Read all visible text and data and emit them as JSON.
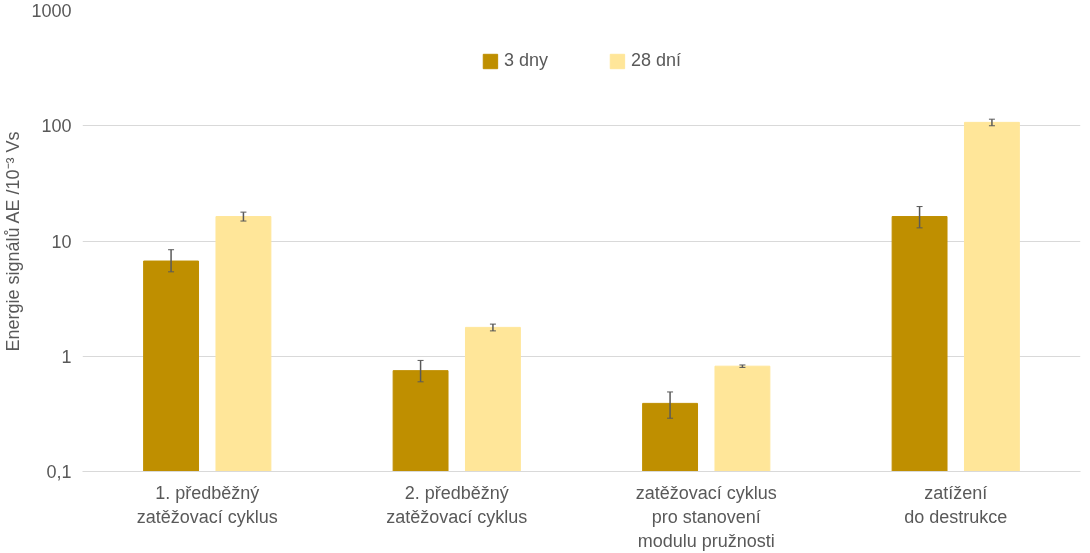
{
  "chart_data": {
    "type": "bar",
    "ylabel": "Energie signálů AE /10⁻³ Vs",
    "categories": [
      "1. předběžný\nzatěžovací cyklus",
      "2. předběžný\nzatěžovací cyklus",
      "zatěžovací cyklus\npro stanovení\nmodulu pružnosti",
      "zatížení\ndo destrukce"
    ],
    "series": [
      {
        "name": "3 dny",
        "color": "#bf8f00",
        "values": [
          6.7,
          0.75,
          0.39,
          16.3
        ],
        "errors": [
          [
            5.4,
            8.4
          ],
          [
            0.6,
            0.92
          ],
          [
            0.29,
            0.49
          ],
          [
            13.0,
            19.9
          ]
        ]
      },
      {
        "name": "28 dní",
        "color": "#ffe699",
        "values": [
          16.3,
          1.78,
          0.82,
          107
        ],
        "errors": [
          [
            14.9,
            17.8
          ],
          [
            1.66,
            1.9
          ],
          [
            0.8,
            0.84
          ],
          [
            100,
            114
          ]
        ]
      }
    ],
    "log": true,
    "ylim": [
      0.1,
      1000
    ],
    "yticks": [
      {
        "value": 0.1,
        "label": "0,1"
      },
      1,
      10,
      100,
      1000
    ],
    "grid": "y",
    "legend": "top"
  }
}
